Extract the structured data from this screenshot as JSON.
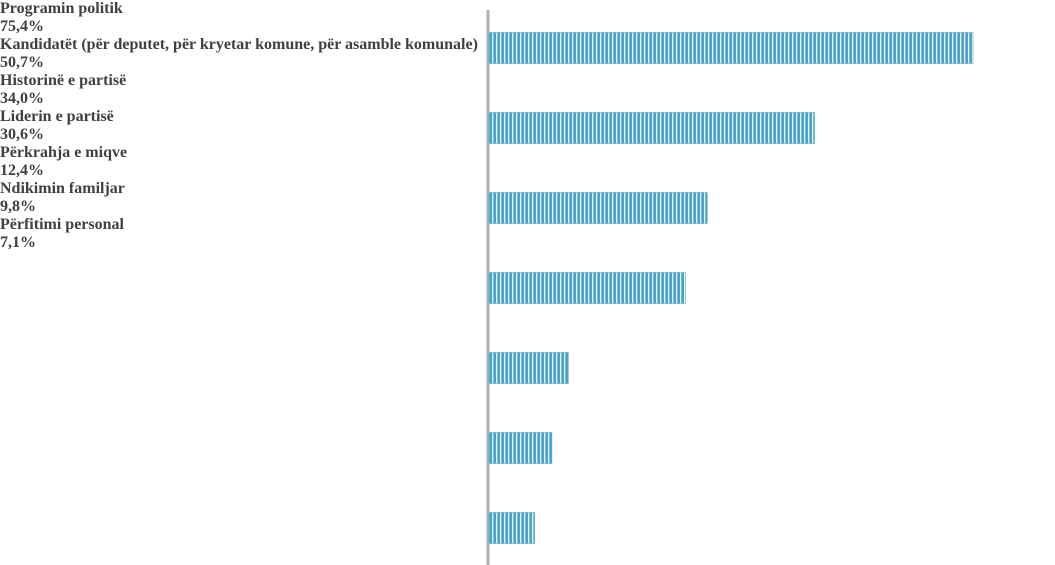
{
  "chart_data": {
    "type": "bar",
    "orientation": "horizontal",
    "categories": [
      "Programin politik",
      "Kandidatët (për deputet, për kryetar komune, për asamble komunale)",
      "Historinë e partisë",
      "Liderin e partisë",
      "Përkrahja e miqve",
      "Ndikimin familjar",
      "Përfitimi personal"
    ],
    "values": [
      75.4,
      50.7,
      34.0,
      30.6,
      12.4,
      9.8,
      7.1
    ],
    "value_labels": [
      "75,4%",
      "50,7%",
      "34,0%",
      "30,6%",
      "12,4%",
      "9,8%",
      "7,1%"
    ],
    "color": "#4ba3c9"
  }
}
